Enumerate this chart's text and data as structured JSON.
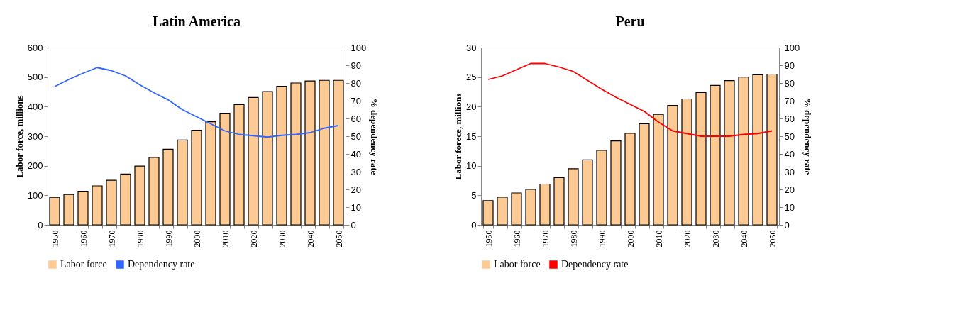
{
  "chart_data": [
    {
      "type": "bar",
      "title": "Latin America",
      "categories": [
        "1950",
        null,
        "1960",
        null,
        "1970",
        null,
        "1980",
        null,
        "1990",
        null,
        "2000",
        null,
        "2010",
        null,
        "2020",
        null,
        "2030",
        null,
        "2040",
        null,
        "2050"
      ],
      "ylabel": "Labor force, millions",
      "y2label": "% dependency rate",
      "ylim": [
        0,
        600
      ],
      "yticks": [
        0,
        100,
        200,
        300,
        400,
        500,
        600
      ],
      "y2lim": [
        0,
        100
      ],
      "y2ticks": [
        0,
        10,
        20,
        30,
        40,
        50,
        60,
        70,
        80,
        90,
        100
      ],
      "legend": "bottom",
      "grid": false,
      "series": [
        {
          "name": "Labor force",
          "color": "#fdca93",
          "values": [
            93,
            103,
            114,
            132,
            151,
            172,
            199,
            228,
            256,
            287,
            320,
            349,
            378,
            407,
            431,
            451,
            469,
            480,
            487,
            489,
            489
          ]
        },
        {
          "name": "Dependency rate",
          "type": "line",
          "axis": "y2",
          "color": "#3366ff",
          "values": [
            78,
            82,
            85.5,
            88.7,
            87,
            84,
            79,
            74.5,
            70.5,
            65,
            61,
            57,
            53,
            51,
            50.3,
            49.5,
            50.5,
            51,
            52,
            54.5,
            56
          ]
        }
      ]
    },
    {
      "type": "bar",
      "title": "Peru",
      "categories": [
        "1950",
        null,
        "1960",
        null,
        "1970",
        null,
        "1980",
        null,
        "1990",
        null,
        "2000",
        null,
        "2010",
        null,
        "2020",
        null,
        "2030",
        null,
        "2040",
        null,
        "2050"
      ],
      "ylabel": "Labor forece, millions",
      "y2label": "% dependency rate",
      "ylim": [
        0,
        30
      ],
      "yticks": [
        0,
        5,
        10,
        15,
        20,
        25,
        30
      ],
      "y2lim": [
        0,
        100
      ],
      "y2ticks": [
        0,
        10,
        20,
        30,
        40,
        50,
        60,
        70,
        80,
        90,
        100
      ],
      "legend": "bottom",
      "grid": false,
      "series": [
        {
          "name": "Labor force",
          "color": "#fdca93",
          "values": [
            4.1,
            4.7,
            5.4,
            6.0,
            6.9,
            8.0,
            9.5,
            11.0,
            12.6,
            14.2,
            15.5,
            17.1,
            18.7,
            20.2,
            21.3,
            22.4,
            23.6,
            24.4,
            25.0,
            25.4,
            25.5
          ]
        },
        {
          "name": "Dependency rate",
          "type": "line",
          "axis": "y2",
          "color": "#ff0000",
          "values": [
            82,
            84,
            87.5,
            91,
            91,
            89,
            86.5,
            81.5,
            76.5,
            72,
            68,
            64,
            58,
            53,
            51.5,
            50,
            50,
            50,
            51,
            51.5,
            53
          ]
        }
      ]
    }
  ]
}
